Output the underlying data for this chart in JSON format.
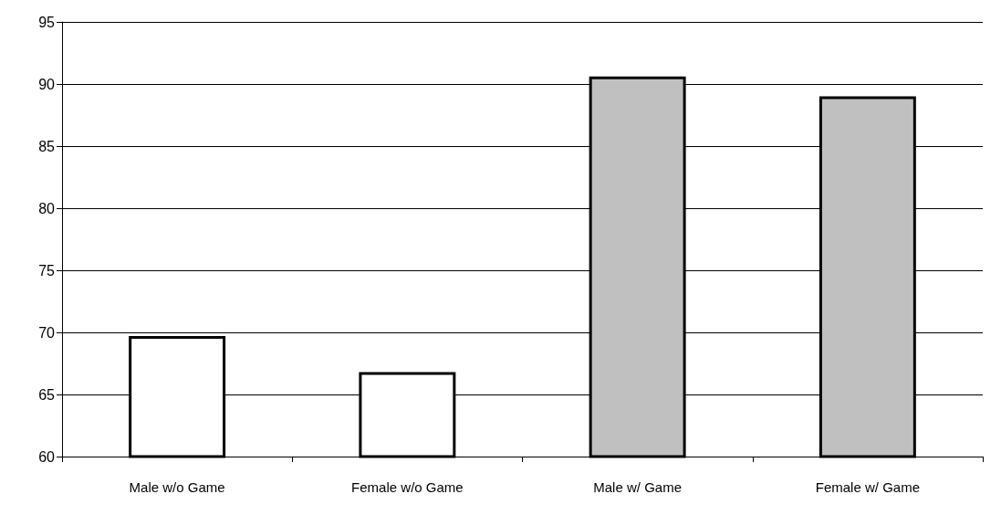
{
  "chart_data": {
    "type": "bar",
    "categories": [
      "Male w/o Game",
      "Female w/o Game",
      "Male w/ Game",
      "Female w/ Game"
    ],
    "values": [
      69.7,
      66.8,
      90.6,
      89.0
    ],
    "colors": [
      "#ffffff",
      "#ffffff",
      "#c0c0c0",
      "#c0c0c0"
    ],
    "ylim": [
      60,
      95
    ],
    "yticks": [
      60,
      65,
      70,
      75,
      80,
      85,
      90,
      95
    ],
    "grid": "y"
  }
}
